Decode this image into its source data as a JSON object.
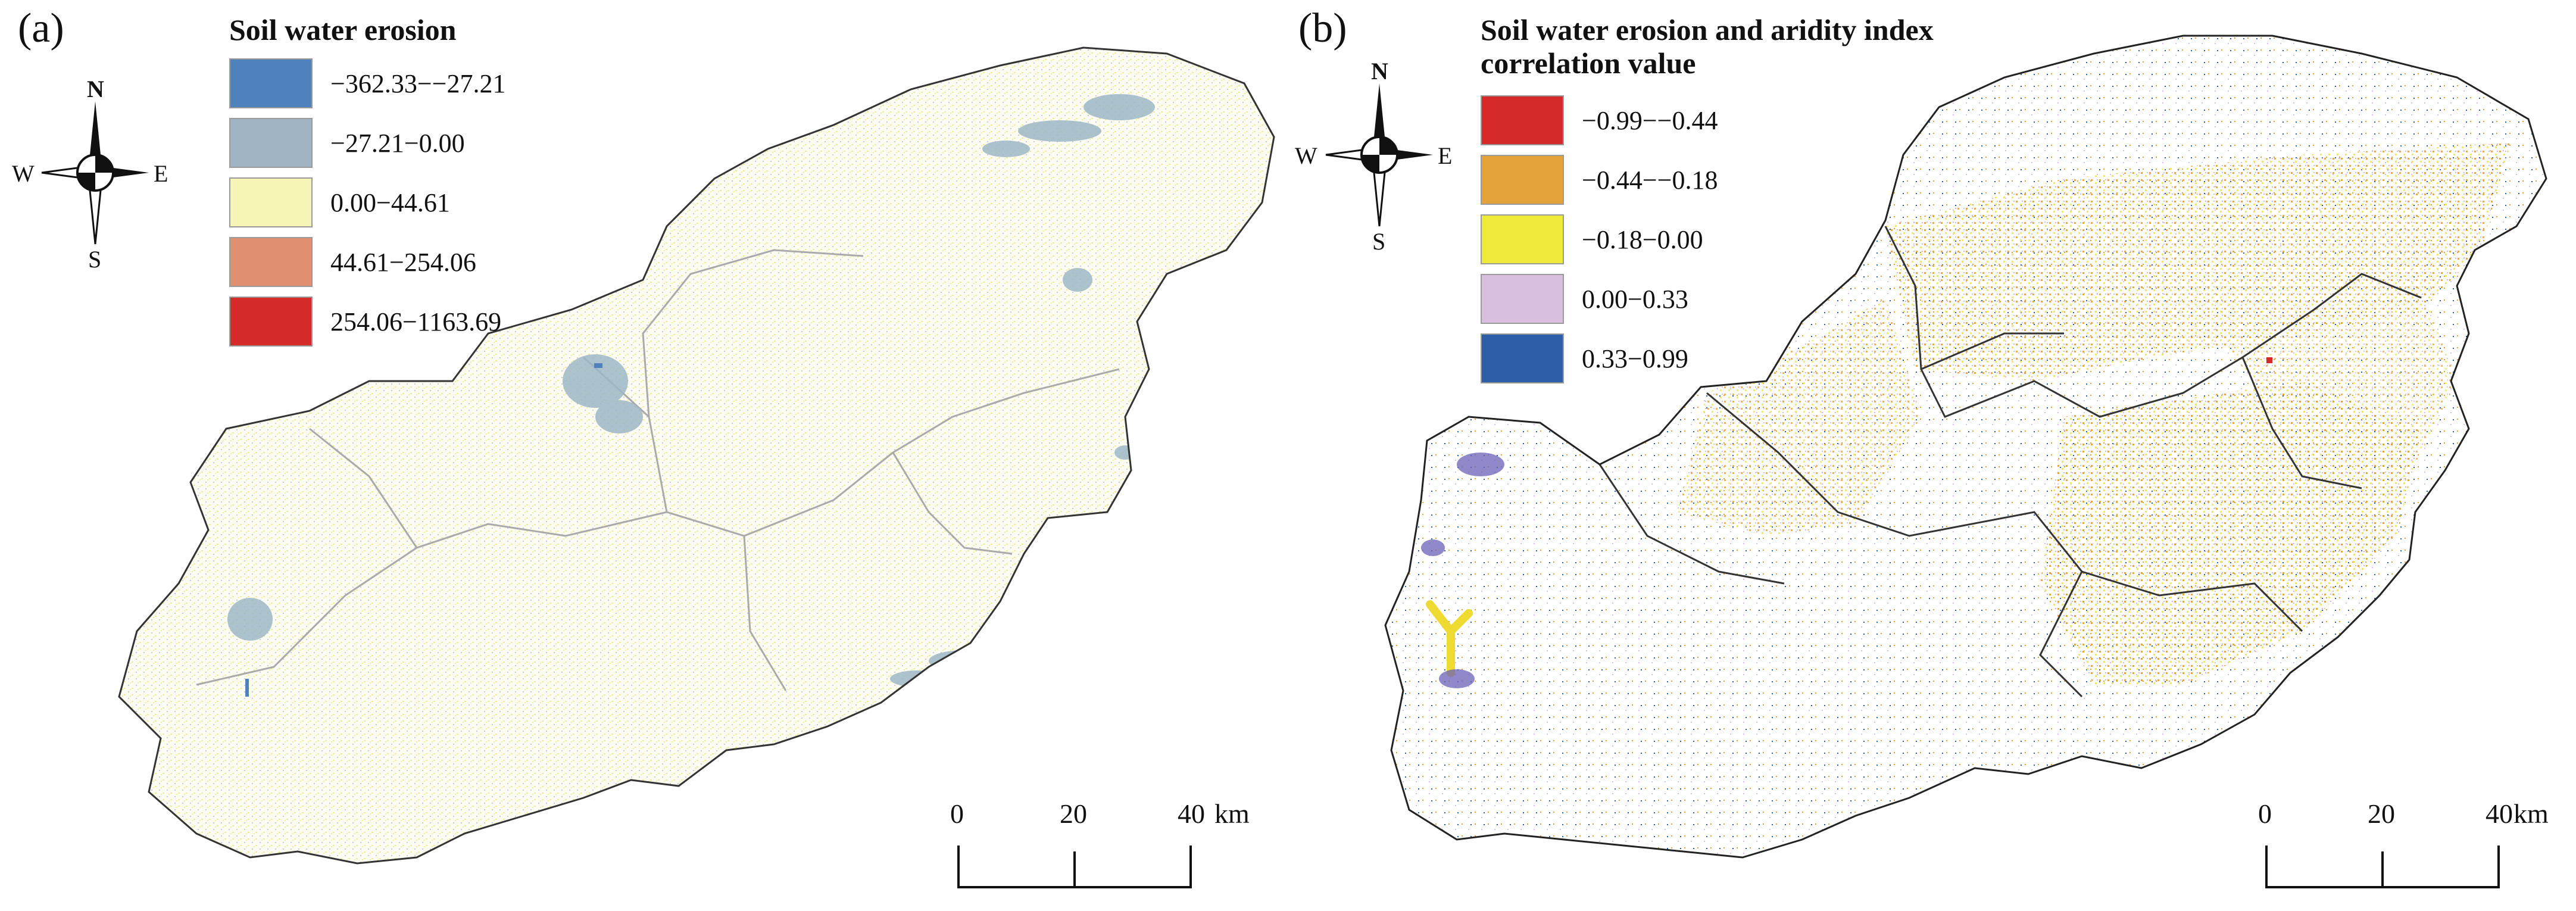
{
  "panel_a": {
    "label": "(a)",
    "legend": {
      "title": "Soil water erosion",
      "classes": [
        {
          "label": "−362.33−−27.21",
          "color": "#4f81bd"
        },
        {
          "label": "−27.21−0.00",
          "color": "#9fb3c2"
        },
        {
          "label": "0.00−44.61",
          "color": "#f7f4b8"
        },
        {
          "label": "44.61−254.06",
          "color": "#e09070"
        },
        {
          "label": "254.06−1163.69",
          "color": "#d42a2a"
        }
      ]
    },
    "compass": {
      "north": "N",
      "south": "S",
      "east": "E",
      "west": "W"
    },
    "scale": {
      "ticks": [
        "0",
        "20",
        "40"
      ],
      "unit": "km"
    }
  },
  "panel_b": {
    "label": "(b)",
    "legend": {
      "title_line1": "Soil water erosion and aridity index",
      "title_line2": "correlation value",
      "classes": [
        {
          "label": "−0.99−−0.44",
          "color": "#d42a2a"
        },
        {
          "label": "−0.44−−0.18",
          "color": "#e3a23a"
        },
        {
          "label": "−0.18−0.00",
          "color": "#eeea3c"
        },
        {
          "label": "0.00−0.33",
          "color": "#d8bfdf"
        },
        {
          "label": "0.33−0.99",
          "color": "#2f5ea8"
        }
      ]
    },
    "compass": {
      "north": "N",
      "south": "S",
      "east": "E",
      "west": "W"
    },
    "scale": {
      "ticks": [
        "0",
        "20",
        "40"
      ],
      "unit": "km"
    }
  }
}
